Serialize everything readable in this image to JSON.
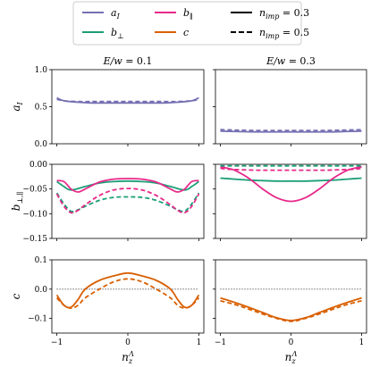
{
  "colors": {
    "a_I": "#7570b3",
    "b_perp": "#1b9e77",
    "b_par": "#e7298a",
    "c": "#d95f02",
    "reference": "#000000"
  },
  "legend": {
    "placement": "top-center",
    "entries": [
      {
        "key": "a_I",
        "text": "a",
        "sub": "I",
        "style": "solid"
      },
      {
        "key": "b_perp",
        "text": "b",
        "sub": "⊥",
        "style": "solid"
      },
      {
        "key": "b_par",
        "text": "b",
        "sub": "∥",
        "style": "solid"
      },
      {
        "key": "c",
        "text": "c",
        "sub": "",
        "style": "solid"
      },
      {
        "key": "n03",
        "text": "n",
        "sub": "imp",
        "suffix": " = 0.3",
        "style": "solid",
        "color": "#000000"
      },
      {
        "key": "n05",
        "text": "n",
        "sub": "imp",
        "suffix": " = 0.5",
        "style": "dashed",
        "color": "#000000"
      }
    ]
  },
  "chart_data": [
    {
      "type": "line",
      "title": "E/w = 0.1",
      "xlabel": "",
      "ylabel": "a_I",
      "xlim": [
        -1.07,
        1.07
      ],
      "ylim": [
        0.0,
        1.0
      ],
      "yticks": [
        "0.0",
        "0.5",
        "1.0"
      ],
      "xticks": [],
      "series": [
        {
          "name": "a_I",
          "n_imp": 0.3,
          "style": "solid",
          "x": [
            -1,
            -0.9,
            -0.7,
            -0.5,
            -0.3,
            0,
            0.3,
            0.5,
            0.7,
            0.9,
            1
          ],
          "y": [
            0.62,
            0.58,
            0.56,
            0.55,
            0.55,
            0.55,
            0.55,
            0.55,
            0.56,
            0.58,
            0.62
          ]
        },
        {
          "name": "a_I",
          "n_imp": 0.5,
          "style": "dashed",
          "x": [
            -1,
            -0.9,
            -0.7,
            -0.5,
            -0.3,
            0,
            0.3,
            0.5,
            0.7,
            0.9,
            1
          ],
          "y": [
            0.6,
            0.58,
            0.57,
            0.57,
            0.57,
            0.57,
            0.57,
            0.57,
            0.57,
            0.58,
            0.6
          ]
        }
      ]
    },
    {
      "type": "line",
      "title": "E/w = 0.3",
      "xlabel": "",
      "ylabel": "",
      "xlim": [
        -1.07,
        1.07
      ],
      "ylim": [
        0.0,
        1.0
      ],
      "yticks": [],
      "xticks": [],
      "series": [
        {
          "name": "a_I",
          "n_imp": 0.3,
          "style": "solid",
          "x": [
            -1,
            -0.5,
            0,
            0.5,
            1
          ],
          "y": [
            0.17,
            0.16,
            0.16,
            0.16,
            0.17
          ]
        },
        {
          "name": "a_I",
          "n_imp": 0.5,
          "style": "dashed",
          "x": [
            -1,
            -0.5,
            0,
            0.5,
            1
          ],
          "y": [
            0.19,
            0.18,
            0.18,
            0.18,
            0.19
          ]
        }
      ]
    },
    {
      "type": "line",
      "title": "",
      "xlabel": "",
      "ylabel": "b_⊥,∥",
      "xlim": [
        -1.07,
        1.07
      ],
      "ylim": [
        -0.15,
        0.0
      ],
      "yticks": [
        "0.00",
        "−0.05",
        "−0.10",
        "−0.15"
      ],
      "xticks": [],
      "series": [
        {
          "name": "b_⊥",
          "n_imp": 0.3,
          "style": "solid",
          "x": [
            -1,
            -0.9,
            -0.8,
            -0.6,
            -0.4,
            -0.2,
            0,
            0.2,
            0.4,
            0.6,
            0.8,
            0.9,
            1
          ],
          "y": [
            -0.035,
            -0.045,
            -0.052,
            -0.045,
            -0.038,
            -0.035,
            -0.034,
            -0.035,
            -0.038,
            -0.045,
            -0.052,
            -0.045,
            -0.035
          ]
        },
        {
          "name": "b_∥",
          "n_imp": 0.3,
          "style": "solid",
          "x": [
            -1,
            -0.9,
            -0.8,
            -0.7,
            -0.6,
            -0.4,
            -0.2,
            0,
            0.2,
            0.4,
            0.6,
            0.7,
            0.8,
            0.9,
            1
          ],
          "y": [
            -0.033,
            -0.035,
            -0.05,
            -0.056,
            -0.05,
            -0.036,
            -0.03,
            -0.029,
            -0.03,
            -0.036,
            -0.05,
            -0.056,
            -0.05,
            -0.035,
            -0.033
          ]
        },
        {
          "name": "b_⊥",
          "n_imp": 0.5,
          "style": "dashed",
          "x": [
            -1,
            -0.9,
            -0.8,
            -0.7,
            -0.6,
            -0.4,
            -0.2,
            0,
            0.2,
            0.4,
            0.6,
            0.7,
            0.8,
            0.9,
            1
          ],
          "y": [
            -0.058,
            -0.08,
            -0.095,
            -0.092,
            -0.085,
            -0.073,
            -0.067,
            -0.066,
            -0.067,
            -0.073,
            -0.085,
            -0.092,
            -0.095,
            -0.08,
            -0.058
          ]
        },
        {
          "name": "b_∥",
          "n_imp": 0.5,
          "style": "dashed",
          "x": [
            -1,
            -0.9,
            -0.8,
            -0.7,
            -0.6,
            -0.4,
            -0.2,
            0,
            0.2,
            0.4,
            0.6,
            0.7,
            0.8,
            0.9,
            1
          ],
          "y": [
            -0.06,
            -0.085,
            -0.098,
            -0.093,
            -0.082,
            -0.063,
            -0.052,
            -0.049,
            -0.052,
            -0.063,
            -0.082,
            -0.093,
            -0.098,
            -0.085,
            -0.06
          ]
        }
      ]
    },
    {
      "type": "line",
      "title": "",
      "xlabel": "",
      "ylabel": "",
      "xlim": [
        -1.07,
        1.07
      ],
      "ylim": [
        -0.15,
        0.0
      ],
      "yticks": [],
      "xticks": [],
      "series": [
        {
          "name": "b_⊥",
          "n_imp": 0.3,
          "style": "solid",
          "x": [
            -1,
            -0.8,
            -0.6,
            -0.4,
            -0.2,
            0,
            0.2,
            0.4,
            0.6,
            0.8,
            1
          ],
          "y": [
            -0.028,
            -0.03,
            -0.032,
            -0.033,
            -0.034,
            -0.034,
            -0.034,
            -0.033,
            -0.032,
            -0.03,
            -0.028
          ]
        },
        {
          "name": "b_∥",
          "n_imp": 0.3,
          "style": "solid",
          "x": [
            -1,
            -0.9,
            -0.8,
            -0.6,
            -0.4,
            -0.2,
            0,
            0.2,
            0.4,
            0.6,
            0.8,
            0.9,
            1
          ],
          "y": [
            -0.005,
            -0.008,
            -0.012,
            -0.028,
            -0.05,
            -0.068,
            -0.075,
            -0.068,
            -0.05,
            -0.028,
            -0.012,
            -0.008,
            -0.005
          ]
        },
        {
          "name": "b_⊥",
          "n_imp": 0.5,
          "style": "dashed",
          "x": [
            -1,
            -0.5,
            0,
            0.5,
            1
          ],
          "y": [
            -0.003,
            -0.003,
            -0.003,
            -0.003,
            -0.003
          ]
        },
        {
          "name": "b_∥",
          "n_imp": 0.5,
          "style": "dashed",
          "x": [
            -1,
            -0.9,
            -0.7,
            -0.5,
            -0.3,
            0,
            0.3,
            0.5,
            0.7,
            0.9,
            1
          ],
          "y": [
            -0.008,
            -0.01,
            -0.011,
            -0.012,
            -0.012,
            -0.012,
            -0.012,
            -0.012,
            -0.011,
            -0.01,
            -0.008
          ]
        }
      ]
    },
    {
      "type": "line",
      "title": "",
      "xlabel": "n_z^Λ",
      "ylabel": "c",
      "xlim": [
        -1.07,
        1.07
      ],
      "ylim": [
        -0.15,
        0.1
      ],
      "yticks": [
        "0.1",
        "0.0",
        "−0.1"
      ],
      "xticks": [
        "−1",
        "0",
        "1"
      ],
      "reference_line": {
        "y": 0.0,
        "style": "dotted"
      },
      "series": [
        {
          "name": "c",
          "n_imp": 0.3,
          "style": "solid",
          "x": [
            -1,
            -0.9,
            -0.8,
            -0.7,
            -0.6,
            -0.4,
            -0.2,
            0,
            0.2,
            0.4,
            0.6,
            0.7,
            0.8,
            0.9,
            1
          ],
          "y": [
            -0.02,
            -0.055,
            -0.062,
            -0.035,
            0.0,
            0.03,
            0.045,
            0.055,
            0.045,
            0.03,
            0.0,
            -0.035,
            -0.062,
            -0.055,
            -0.02
          ]
        },
        {
          "name": "c",
          "n_imp": 0.5,
          "style": "dashed",
          "x": [
            -1,
            -0.9,
            -0.8,
            -0.7,
            -0.6,
            -0.4,
            -0.2,
            0,
            0.2,
            0.4,
            0.6,
            0.7,
            0.8,
            0.9,
            1
          ],
          "y": [
            -0.03,
            -0.055,
            -0.065,
            -0.055,
            -0.03,
            0.0,
            0.025,
            0.035,
            0.025,
            0.0,
            -0.03,
            -0.055,
            -0.065,
            -0.055,
            -0.03
          ]
        }
      ]
    },
    {
      "type": "line",
      "title": "",
      "xlabel": "n_z^Λ",
      "ylabel": "",
      "xlim": [
        -1.07,
        1.07
      ],
      "ylim": [
        -0.15,
        0.1
      ],
      "yticks": [],
      "xticks": [
        "−1",
        "0",
        "1"
      ],
      "reference_line": {
        "y": 0.0,
        "style": "dotted"
      },
      "series": [
        {
          "name": "c",
          "n_imp": 0.3,
          "style": "solid",
          "x": [
            -1,
            -0.8,
            -0.6,
            -0.4,
            -0.2,
            0,
            0.2,
            0.4,
            0.6,
            0.8,
            1
          ],
          "y": [
            -0.03,
            -0.045,
            -0.062,
            -0.08,
            -0.098,
            -0.107,
            -0.098,
            -0.08,
            -0.062,
            -0.045,
            -0.03
          ]
        },
        {
          "name": "c",
          "n_imp": 0.5,
          "style": "dashed",
          "x": [
            -1,
            -0.8,
            -0.6,
            -0.4,
            -0.2,
            0,
            0.2,
            0.4,
            0.6,
            0.8,
            1
          ],
          "y": [
            -0.04,
            -0.052,
            -0.068,
            -0.085,
            -0.1,
            -0.11,
            -0.1,
            -0.085,
            -0.068,
            -0.052,
            -0.04
          ]
        }
      ]
    }
  ]
}
